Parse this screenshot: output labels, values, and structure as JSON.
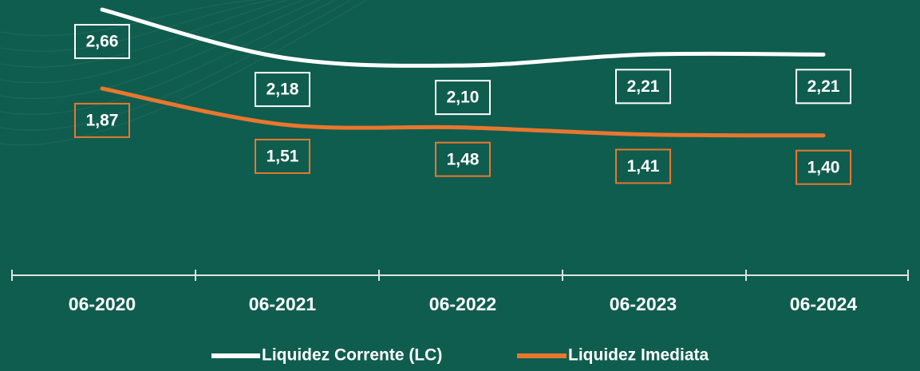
{
  "chart_data": {
    "type": "line",
    "categories": [
      "06-2020",
      "06-2021",
      "06-2022",
      "06-2023",
      "06-2024"
    ],
    "series": [
      {
        "name": "Liquidez Corrente (LC)",
        "color": "#ffffff",
        "values": [
          2.66,
          2.18,
          2.1,
          2.21,
          2.21
        ],
        "value_labels": [
          "2,66",
          "2,18",
          "2,10",
          "2,21",
          "2,21"
        ]
      },
      {
        "name": "Liquidez Imediata",
        "color": "#e8772e",
        "values": [
          1.87,
          1.51,
          1.48,
          1.41,
          1.4
        ],
        "value_labels": [
          "1,87",
          "1,51",
          "1,48",
          "1,41",
          "1,40"
        ]
      }
    ],
    "ylim": [
      0,
      2.7
    ]
  }
}
